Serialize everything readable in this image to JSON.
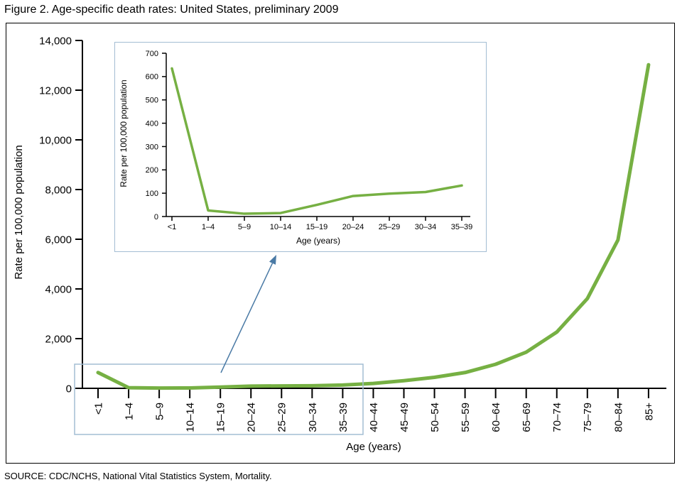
{
  "figure_title": "Figure 2. Age-specific death rates: United States, preliminary 2009",
  "source_note": "SOURCE: CDC/NCHS, National Vital Statistics System, Mortality.",
  "colors": {
    "line": "#76b043",
    "axis": "#000000",
    "highlight_box": "#a3bdd3",
    "inset_border": "#a3bdd3",
    "arrow": "#4a7aa5"
  },
  "chart_data": {
    "type": "line",
    "title": "Figure 2. Age-specific death rates: United States, preliminary 2009",
    "categories": [
      "<1",
      "1–4",
      "5–9",
      "10–14",
      "15–19",
      "20–24",
      "25–29",
      "30–34",
      "35–39",
      "40–44",
      "45–49",
      "50–54",
      "55–59",
      "60–64",
      "65–69",
      "70–74",
      "75–79",
      "80–84",
      "85+"
    ],
    "values": [
      635,
      26,
      12,
      15,
      50,
      88,
      98,
      105,
      133,
      195,
      307,
      443,
      635,
      968,
      1455,
      2264,
      3612,
      5971,
      13023
    ],
    "xlabel": "Age (years)",
    "ylabel": "Rate per 100,000 population",
    "ylim": [
      0,
      14000
    ],
    "ytick_step": 2000,
    "grid": false,
    "legend": "none",
    "inset": {
      "description": "magnified view of ages <1 through 35–39",
      "categories_count": 9,
      "xlabel": "Age (years)",
      "ylabel": "Rate per 100,000 population",
      "ylim": [
        0,
        700
      ],
      "ytick_step": 100
    }
  }
}
